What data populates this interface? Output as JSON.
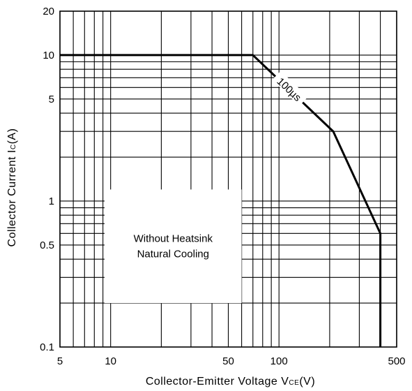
{
  "chart_data": {
    "type": "line",
    "title": "",
    "xlabel_main": "Collector-Emitter Voltage V",
    "xlabel_sub": "CE",
    "xlabel_unit": "(V)",
    "ylabel_main": "Collector Current I",
    "ylabel_sub": "C",
    "ylabel_unit": "(A)",
    "x_scale": "log",
    "y_scale": "log",
    "xlim": [
      5,
      500
    ],
    "ylim": [
      0.1,
      20
    ],
    "x_ticks": [
      {
        "value": 5,
        "label": "5"
      },
      {
        "value": 10,
        "label": "10"
      },
      {
        "value": 50,
        "label": "50"
      },
      {
        "value": 100,
        "label": "100"
      },
      {
        "value": 500,
        "label": "500"
      }
    ],
    "y_ticks": [
      {
        "value": 0.1,
        "label": "0.1"
      },
      {
        "value": 0.5,
        "label": "0.5"
      },
      {
        "value": 1,
        "label": "1"
      },
      {
        "value": 5,
        "label": "5"
      },
      {
        "value": 10,
        "label": "10"
      },
      {
        "value": 20,
        "label": "20"
      }
    ],
    "grid": true,
    "series": [
      {
        "x": [
          5,
          70,
          210,
          400,
          400
        ],
        "y": [
          10,
          10,
          3,
          0.6,
          0.1
        ]
      }
    ],
    "annotations": {
      "pulse_label": "100µs",
      "box_line1": "Without Heatsink",
      "box_line2": "Natural Cooling"
    }
  }
}
